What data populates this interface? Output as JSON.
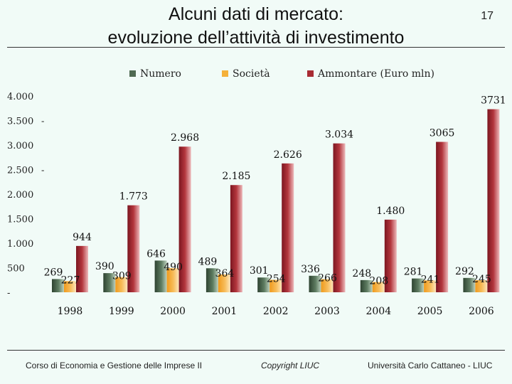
{
  "slide": {
    "title_line1": "Alcuni dati di mercato:",
    "title_line2": "evoluzione dell’attività di investimento",
    "page_number": "17"
  },
  "footer": {
    "left": "Corso di Economia e Gestione delle Imprese II",
    "center": "Copyright LIUC",
    "right": "Università Carlo Cattaneo - LIUC"
  },
  "chart_data": {
    "type": "bar",
    "title": "",
    "xlabel": "",
    "ylabel": "",
    "ylim": [
      0,
      4000
    ],
    "y_ticks": [
      "-",
      "500",
      "1.000",
      "1.500",
      "2.000",
      "2.500",
      "3.000",
      "3.500",
      "4.000"
    ],
    "y_tick_values": [
      0,
      500,
      1000,
      1500,
      2000,
      2500,
      3000,
      3500,
      4000
    ],
    "categories": [
      "1998",
      "1999",
      "2000",
      "2001",
      "2002",
      "2003",
      "2004",
      "2005",
      "2006"
    ],
    "series": [
      {
        "name": "Numero",
        "color": "#4f6a52",
        "values": [
          269,
          390,
          646,
          489,
          301,
          336,
          248,
          281,
          292
        ],
        "labels": [
          "269",
          "390",
          "646",
          "489",
          "301",
          "336",
          "248",
          "281",
          "292"
        ]
      },
      {
        "name": "Società",
        "color": "#f5b13a",
        "values": [
          227,
          309,
          490,
          364,
          254,
          266,
          208,
          241,
          245
        ],
        "labels": [
          "227",
          "309",
          "490",
          "364",
          "254",
          "266",
          "208",
          "241",
          "245"
        ]
      },
      {
        "name": "Ammontare (Euro mln)",
        "color": "#a82c33",
        "values": [
          944,
          1773,
          2968,
          2185,
          2626,
          3034,
          1480,
          3065,
          3731
        ],
        "labels": [
          "944",
          "1.773",
          "2.968",
          "2.185",
          "2.626",
          "3.034",
          "1.480",
          "3065",
          "3731"
        ]
      }
    ]
  }
}
